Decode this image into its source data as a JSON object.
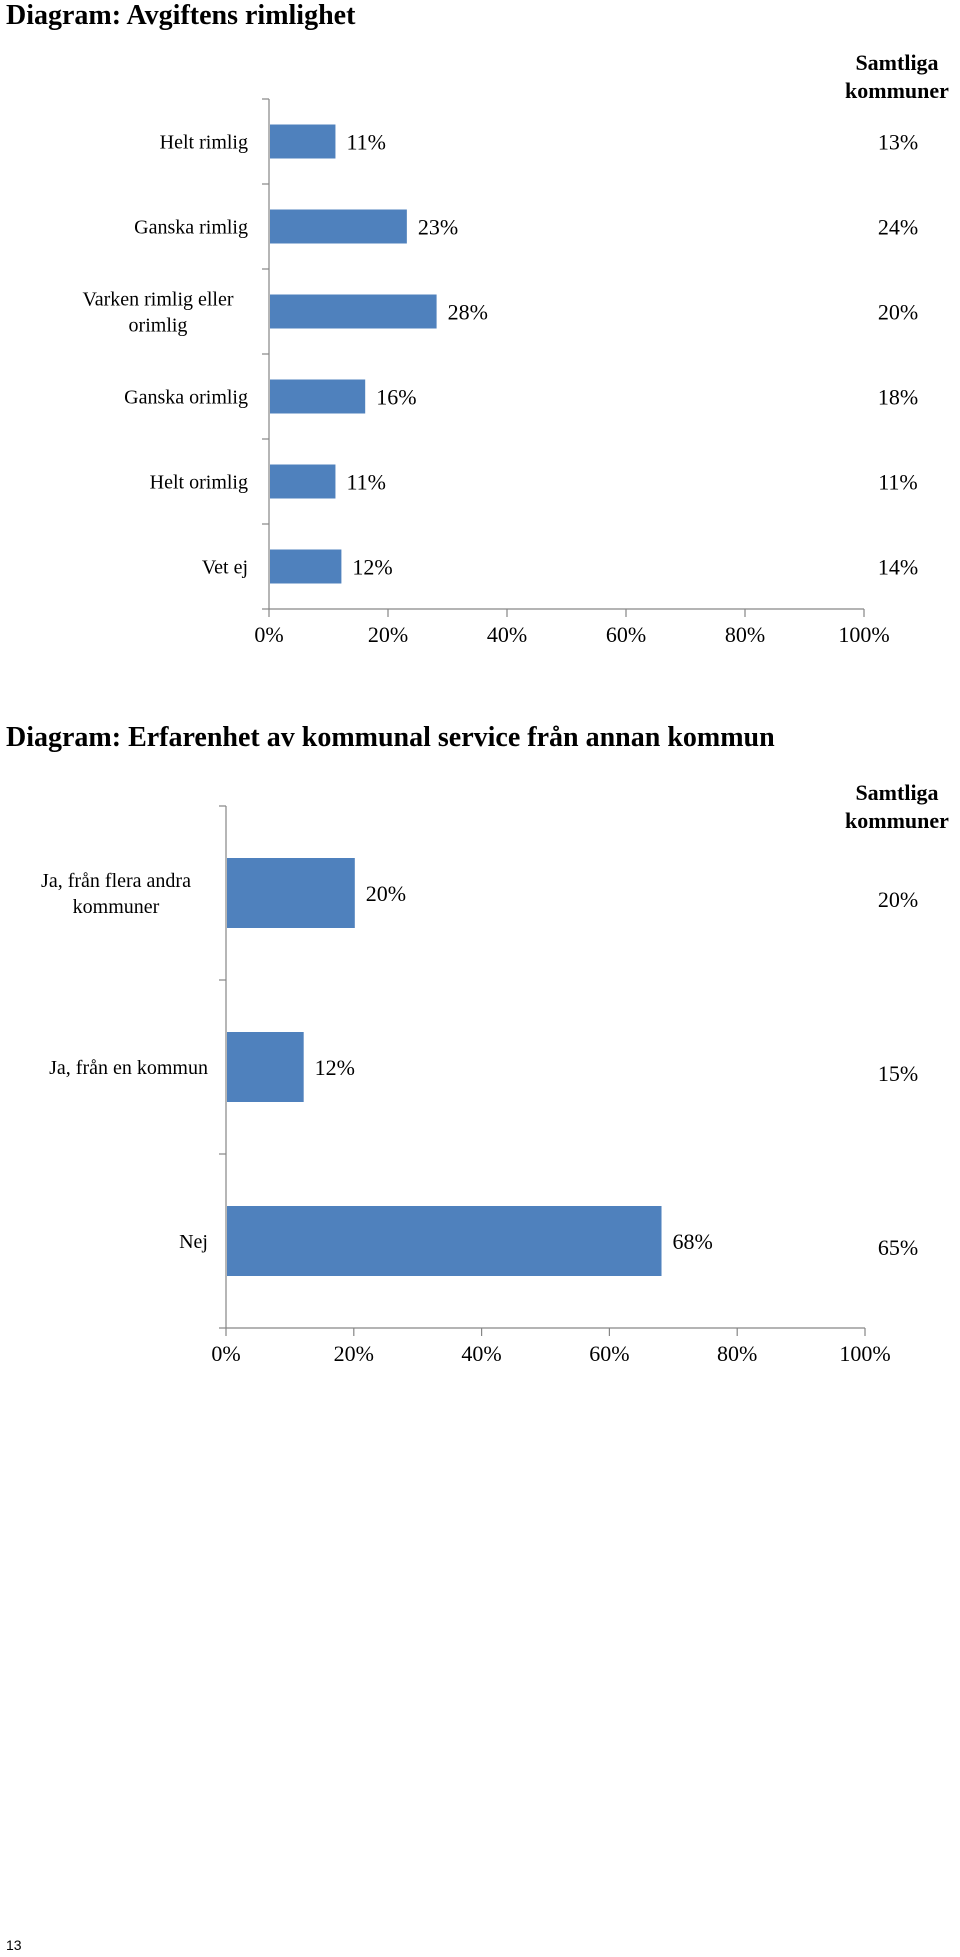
{
  "page_number": "13",
  "chart_data": [
    {
      "type": "bar",
      "orientation": "horizontal",
      "title": "Diagram: Avgiftens rimlighet",
      "categories": [
        "Helt rimlig",
        "Ganska rimlig",
        "Varken rimlig eller orimlig",
        "Ganska orimlig",
        "Helt orimlig",
        "Vet ej"
      ],
      "values": [
        11,
        23,
        28,
        16,
        11,
        12
      ],
      "value_labels": [
        "11%",
        "23%",
        "28%",
        "16%",
        "11%",
        "12%"
      ],
      "comparison_header": "Samtliga kommuner",
      "comparison_values": [
        "13%",
        "24%",
        "20%",
        "18%",
        "11%",
        "14%"
      ],
      "xlim": [
        0,
        100
      ],
      "xticks": [
        "0%",
        "20%",
        "40%",
        "60%",
        "80%",
        "100%"
      ],
      "grid": false,
      "bar_color": "#4f81bd"
    },
    {
      "type": "bar",
      "orientation": "horizontal",
      "title": "Diagram: Erfarenhet av kommunal service från annan kommun",
      "categories": [
        "Ja, från flera andra kommuner",
        "Ja, från en kommun",
        "Nej"
      ],
      "values": [
        20,
        12,
        68
      ],
      "value_labels": [
        "20%",
        "12%",
        "68%"
      ],
      "comparison_header": "Samtliga kommuner",
      "comparison_values": [
        "20%",
        "15%",
        "65%"
      ],
      "xlim": [
        0,
        100
      ],
      "xticks": [
        "0%",
        "20%",
        "40%",
        "60%",
        "80%",
        "100%"
      ],
      "grid": false,
      "bar_color": "#4f81bd"
    }
  ]
}
